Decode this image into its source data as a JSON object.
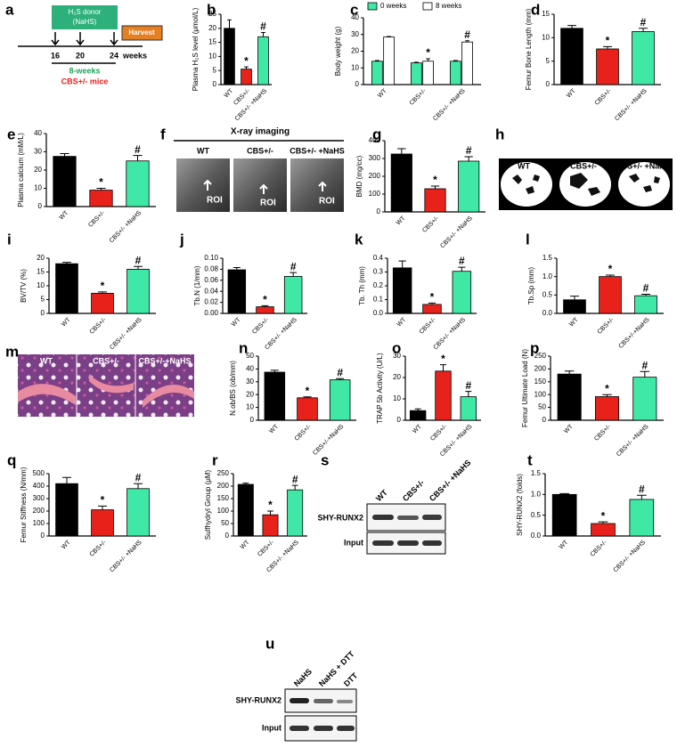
{
  "panel_a": {
    "label": "a",
    "donor": "H₂S donor",
    "donor_drug": "(NaHS)",
    "harvest": "Harvest",
    "ticks": [
      "16",
      "20",
      "24"
    ],
    "unit": "weeks",
    "duration": "8-weeks",
    "mice": "CBS+/- mice"
  },
  "panel_f": {
    "label": "f",
    "title": "X-ray imaging",
    "groups": [
      "WT",
      "CBS+/-",
      "CBS+/- +NaHS"
    ],
    "roi": [
      "ROI",
      "ROI",
      "ROI"
    ]
  },
  "panel_h": {
    "label": "h",
    "groups": [
      "WT",
      "CBS+/-",
      "CBS+/- +NaHS"
    ]
  },
  "panel_m": {
    "label": "m",
    "groups": [
      "WT",
      "CBS+/-",
      "CBS+/-+NaHS"
    ]
  },
  "panel_s": {
    "label": "s",
    "groups": [
      "WT",
      "CBS+/-",
      "CBS+/- +NaHS"
    ],
    "rows": [
      "SHY-RUNX2",
      "Input"
    ]
  },
  "panel_u": {
    "label": "u",
    "groups": [
      "NaHS",
      "NaHS + DTT",
      "DTT"
    ],
    "rows": [
      "SHY-RUNX2",
      "Input"
    ]
  },
  "chart_data": [
    {
      "type": "bar",
      "panel": "b",
      "ylabel": "Plasma H₂S level (μmol/L)",
      "categories": [
        "WT",
        "CBS+/-",
        "CBS+/- +NaHS"
      ],
      "values": [
        20,
        5.5,
        17
      ],
      "errors": [
        3,
        0.8,
        1.5
      ],
      "markers": [
        null,
        "*",
        "#"
      ],
      "colors": [
        "#000000",
        "#e8211b",
        "#3fe8a4"
      ],
      "ylim": [
        0,
        25
      ],
      "yticks": [
        0,
        5,
        10,
        15,
        20,
        25
      ]
    },
    {
      "type": "grouped_bar",
      "panel": "c",
      "ylabel": "Body weight (g)",
      "categories": [
        "WT",
        "CBS+/-",
        "CBS+/- +NaHS"
      ],
      "series": [
        {
          "name": "0 weeks",
          "color": "#3fe8a4",
          "values": [
            14,
            13,
            14
          ],
          "errors": [
            0.4,
            0.4,
            0.4
          ],
          "markers": [
            null,
            null,
            null
          ]
        },
        {
          "name": "8 weeks",
          "color": "#ffffff",
          "values": [
            28.5,
            14,
            25.5
          ],
          "errors": [
            0.3,
            1.5,
            0.8
          ],
          "markers": [
            null,
            "*",
            "#"
          ]
        }
      ],
      "ylim": [
        0,
        40
      ],
      "yticks": [
        0,
        10,
        20,
        30,
        40
      ]
    },
    {
      "type": "bar",
      "panel": "d",
      "ylabel": "Femur Bone Length (mm)",
      "categories": [
        "WT",
        "CBS+/-",
        "CBS+/- +NaHS"
      ],
      "values": [
        12,
        7.6,
        11.3
      ],
      "errors": [
        0.6,
        0.5,
        0.7
      ],
      "markers": [
        null,
        "*",
        "#"
      ],
      "colors": [
        "#000000",
        "#e8211b",
        "#3fe8a4"
      ],
      "ylim": [
        0,
        15
      ],
      "yticks": [
        0,
        5,
        10,
        15
      ]
    },
    {
      "type": "bar",
      "panel": "e",
      "ylabel": "Plasma calcium (mM/L)",
      "categories": [
        "WT",
        "CBS+/-",
        "CBS+/- +NaHS"
      ],
      "values": [
        27.5,
        9,
        25
      ],
      "errors": [
        1.5,
        1,
        3
      ],
      "markers": [
        null,
        "*",
        "#"
      ],
      "colors": [
        "#000000",
        "#e8211b",
        "#3fe8a4"
      ],
      "ylim": [
        0,
        40
      ],
      "yticks": [
        0,
        10,
        20,
        30,
        40
      ]
    },
    {
      "type": "bar",
      "panel": "g",
      "ylabel": "BMD (mg/cc)",
      "categories": [
        "WT",
        "CBS+/-",
        "CBS+/- +NaHS"
      ],
      "values": [
        325,
        130,
        285
      ],
      "errors": [
        30,
        15,
        25
      ],
      "markers": [
        null,
        "*",
        "#"
      ],
      "colors": [
        "#000000",
        "#e8211b",
        "#3fe8a4"
      ],
      "ylim": [
        0,
        400
      ],
      "yticks": [
        0,
        100,
        200,
        300,
        400
      ]
    },
    {
      "type": "bar",
      "panel": "i",
      "ylabel": "BV/TV (%)",
      "categories": [
        "WT",
        "CBS+/-",
        "CBS+/- +NaHS"
      ],
      "values": [
        18,
        7.3,
        16
      ],
      "errors": [
        0.5,
        0.5,
        1
      ],
      "markers": [
        null,
        "*",
        "#"
      ],
      "colors": [
        "#000000",
        "#e8211b",
        "#3fe8a4"
      ],
      "ylim": [
        0,
        20
      ],
      "yticks": [
        0,
        5,
        10,
        15,
        20
      ]
    },
    {
      "type": "bar",
      "panel": "j",
      "ylabel": "Tb.N (1/mm)",
      "categories": [
        "WT",
        "CBS+/-",
        "CBS+/- +NaHS"
      ],
      "values": [
        0.079,
        0.012,
        0.067
      ],
      "errors": [
        0.004,
        0.002,
        0.007
      ],
      "markers": [
        null,
        "*",
        "#"
      ],
      "colors": [
        "#000000",
        "#e8211b",
        "#3fe8a4"
      ],
      "ylim": [
        0,
        0.1
      ],
      "yticks": [
        {
          "value": 0,
          "label": "0.00"
        },
        {
          "value": 0.02,
          "label": "0.02"
        },
        {
          "value": 0.04,
          "label": "0.04"
        },
        {
          "value": 0.06,
          "label": "0.06"
        },
        {
          "value": 0.08,
          "label": "0.08"
        },
        {
          "value": 0.1,
          "label": "0.10"
        }
      ]
    },
    {
      "type": "bar",
      "panel": "k",
      "ylabel": "Tb. Th (mm)",
      "categories": [
        "WT",
        "CBS+/-",
        "CBS+/- +NaHS"
      ],
      "values": [
        0.33,
        0.065,
        0.305
      ],
      "errors": [
        0.05,
        0.01,
        0.03
      ],
      "markers": [
        null,
        "*",
        "#"
      ],
      "colors": [
        "#000000",
        "#e8211b",
        "#3fe8a4"
      ],
      "ylim": [
        0,
        0.4
      ],
      "yticks": [
        {
          "value": 0,
          "label": "0.0"
        },
        0.1,
        0.2,
        0.3,
        0.4
      ]
    },
    {
      "type": "bar",
      "panel": "l",
      "ylabel": "Tb.Sp (mm)",
      "categories": [
        "WT",
        "CBS+/-",
        "CBS+/-+NaHS"
      ],
      "values": [
        0.37,
        1.0,
        0.48
      ],
      "errors": [
        0.1,
        0.04,
        0.04
      ],
      "markers": [
        null,
        "*",
        "#"
      ],
      "colors": [
        "#000000",
        "#e8211b",
        "#3fe8a4"
      ],
      "ylim": [
        0,
        1.5
      ],
      "yticks": [
        {
          "value": 0,
          "label": "0.0"
        },
        0.5,
        {
          "value": 1,
          "label": "1.0"
        },
        1.5
      ]
    },
    {
      "type": "bar",
      "panel": "n",
      "ylabel": "N.ob/BS (ob/mm)",
      "categories": [
        "WT",
        "CBS+/-",
        "CBS+/-+NaHS"
      ],
      "values": [
        37.5,
        17.5,
        31.5
      ],
      "errors": [
        1.5,
        0.7,
        1
      ],
      "markers": [
        null,
        "*",
        "#"
      ],
      "colors": [
        "#000000",
        "#e8211b",
        "#3fe8a4"
      ],
      "ylim": [
        0,
        50
      ],
      "yticks": [
        0,
        10,
        20,
        30,
        40,
        50
      ]
    },
    {
      "type": "bar",
      "panel": "o",
      "ylabel": "TRAP 5b Activity (U/L)",
      "categories": [
        "WT",
        "CBS+/-",
        "CBS+/- +NaHS"
      ],
      "values": [
        4.5,
        23,
        11
      ],
      "errors": [
        0.8,
        3,
        2.5
      ],
      "markers": [
        null,
        "*",
        "#"
      ],
      "colors": [
        "#000000",
        "#e8211b",
        "#3fe8a4"
      ],
      "ylim": [
        0,
        30
      ],
      "yticks": [
        0,
        10,
        20,
        30
      ]
    },
    {
      "type": "bar",
      "panel": "p",
      "ylabel": "Femur Ultimate Load (N)",
      "categories": [
        "WT",
        "CBS+/-",
        "CBS+/- +NaHS"
      ],
      "values": [
        180,
        92,
        168
      ],
      "errors": [
        12,
        8,
        22
      ],
      "markers": [
        null,
        "*",
        "#"
      ],
      "colors": [
        "#000000",
        "#e8211b",
        "#3fe8a4"
      ],
      "ylim": [
        0,
        250
      ],
      "yticks": [
        0,
        50,
        100,
        150,
        200,
        250
      ]
    },
    {
      "type": "bar",
      "panel": "q",
      "ylabel": "Femur Stiffness (N/mm)",
      "categories": [
        "WT",
        "CBS+/-",
        "CBS+/- +NaHS"
      ],
      "values": [
        420,
        210,
        380
      ],
      "errors": [
        50,
        30,
        40
      ],
      "markers": [
        null,
        "*",
        "#"
      ],
      "colors": [
        "#000000",
        "#e8211b",
        "#3fe8a4"
      ],
      "ylim": [
        0,
        500
      ],
      "yticks": [
        0,
        100,
        200,
        300,
        400,
        500
      ]
    },
    {
      "type": "bar",
      "panel": "r",
      "ylabel": "Sulfhydryl Group (μM)",
      "categories": [
        "WT",
        "CBS+/-",
        "CBS+/- +NaHS"
      ],
      "values": [
        207,
        85,
        185
      ],
      "errors": [
        5,
        15,
        18
      ],
      "markers": [
        null,
        "*",
        "#"
      ],
      "colors": [
        "#000000",
        "#e8211b",
        "#3fe8a4"
      ],
      "ylim": [
        0,
        250
      ],
      "yticks": [
        0,
        50,
        100,
        150,
        200,
        250
      ]
    },
    {
      "type": "bar",
      "panel": "t",
      "ylabel": "SHY-RUNX2 (folds)",
      "categories": [
        "WT",
        "CBS+/-",
        "CBS+/- +NaHS"
      ],
      "values": [
        1.0,
        0.3,
        0.88
      ],
      "errors": [
        0.02,
        0.04,
        0.1
      ],
      "markers": [
        null,
        "*",
        "#"
      ],
      "colors": [
        "#000000",
        "#e8211b",
        "#3fe8a4"
      ],
      "ylim": [
        0,
        1.5
      ],
      "yticks": [
        {
          "value": 0,
          "label": "0.0"
        },
        0.5,
        {
          "value": 1,
          "label": "1.0"
        },
        1.5
      ]
    }
  ]
}
